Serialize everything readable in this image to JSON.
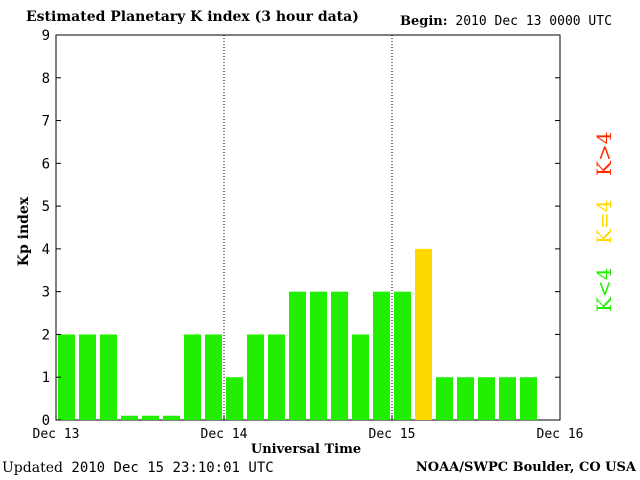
{
  "header": {
    "title": "Estimated Planetary K index (3 hour data)",
    "begin_label": "Begin:",
    "begin_value": "2010 Dec 13 0000 UTC"
  },
  "footer": {
    "updated_label": "Updated",
    "updated_value": "2010 Dec 15 23:10:01 UTC",
    "source": "NOAA/SWPC Boulder, CO USA"
  },
  "legend": [
    {
      "label": "K>4",
      "color": "#ff2a00"
    },
    {
      "label": "K=4",
      "color": "#ffd800"
    },
    {
      "label": "K<4",
      "color": "#22ee00"
    }
  ],
  "chart_data": {
    "type": "bar",
    "title": "Estimated Planetary K index (3 hour data)",
    "xlabel": "Universal Time",
    "ylabel": "Kp index",
    "ylim": [
      0,
      9
    ],
    "yticks": [
      0,
      1,
      2,
      3,
      4,
      5,
      6,
      7,
      8,
      9
    ],
    "xtick_labels": [
      "Dec 13",
      "Dec 14",
      "Dec 15",
      "Dec 16"
    ],
    "day_dividers": [
      "Dec 14",
      "Dec 15"
    ],
    "interval_hours": 3,
    "values": [
      2,
      2,
      2,
      0.1,
      0.1,
      0.1,
      2,
      2,
      1,
      2,
      2,
      3,
      3,
      3,
      2,
      3,
      3,
      4,
      1,
      1,
      1,
      1,
      1
    ],
    "colors": {
      "below4": "#22ee00",
      "equal4": "#ffd800",
      "above4": "#ff2a00"
    }
  }
}
